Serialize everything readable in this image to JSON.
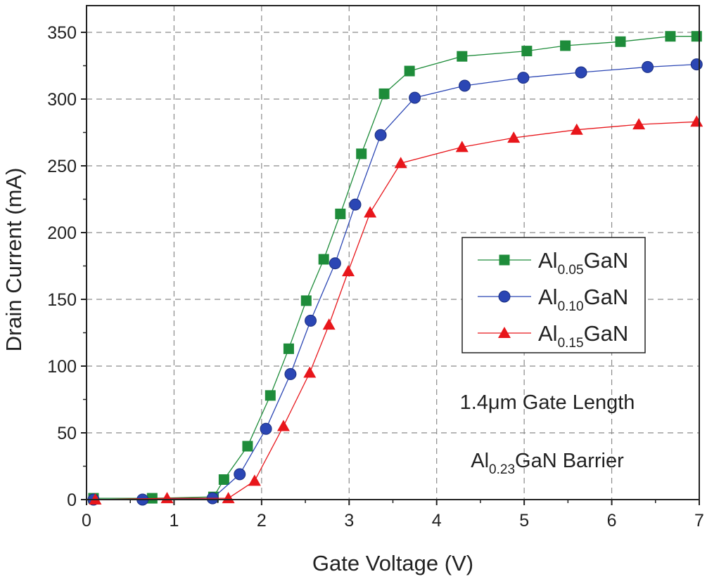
{
  "chart_data": {
    "type": "line",
    "xlabel": "Gate Voltage (V)",
    "ylabel": "Drain Current (mA)",
    "xlim": [
      0,
      7
    ],
    "ylim": [
      0,
      370
    ],
    "xticks": [
      0,
      1,
      2,
      3,
      4,
      5,
      6,
      7
    ],
    "yticks": [
      0,
      50,
      100,
      150,
      200,
      250,
      300,
      350
    ],
    "grid": true,
    "legend_position": "right-middle",
    "series": [
      {
        "name": "Al0.05GaN",
        "legend_main": "Al",
        "legend_sub": "0.05",
        "legend_tail": "GaN",
        "color": "#1e8c3a",
        "marker": "square",
        "x": [
          0.08,
          0.75,
          1.45,
          1.57,
          1.84,
          2.1,
          2.31,
          2.51,
          2.71,
          2.9,
          3.14,
          3.4,
          3.69,
          4.29,
          5.03,
          5.47,
          6.1,
          6.67,
          6.97
        ],
        "y": [
          1,
          1,
          2,
          15,
          40,
          78,
          113,
          149,
          180,
          214,
          259,
          304,
          321,
          332,
          336,
          340,
          343,
          347,
          347
        ]
      },
      {
        "name": "Al0.10GaN",
        "legend_main": "Al",
        "legend_sub": "0.10",
        "legend_tail": "GaN",
        "color": "#2b46b4",
        "marker": "circle",
        "x": [
          0.08,
          0.64,
          1.44,
          1.75,
          2.05,
          2.33,
          2.56,
          2.84,
          3.07,
          3.36,
          3.75,
          4.32,
          4.99,
          5.65,
          6.41,
          6.97
        ],
        "y": [
          0,
          0,
          1,
          19,
          53,
          94,
          134,
          177,
          221,
          273,
          301,
          310,
          316,
          320,
          324,
          326
        ]
      },
      {
        "name": "Al0.15GaN",
        "legend_main": "Al",
        "legend_sub": "0.15",
        "legend_tail": "GaN",
        "color": "#e8161b",
        "marker": "triangle",
        "x": [
          0.1,
          0.92,
          1.62,
          1.92,
          2.25,
          2.55,
          2.77,
          2.99,
          3.24,
          3.59,
          4.29,
          4.88,
          5.6,
          6.31,
          6.97
        ],
        "y": [
          0,
          1,
          1,
          14,
          55,
          95,
          131,
          171,
          215,
          252,
          264,
          271,
          277,
          281,
          283
        ]
      }
    ],
    "annotations": [
      {
        "text": "1.4μm Gate Length"
      },
      {
        "main": "Al",
        "sub": "0.23",
        "tail": "GaN Barrier"
      }
    ]
  }
}
